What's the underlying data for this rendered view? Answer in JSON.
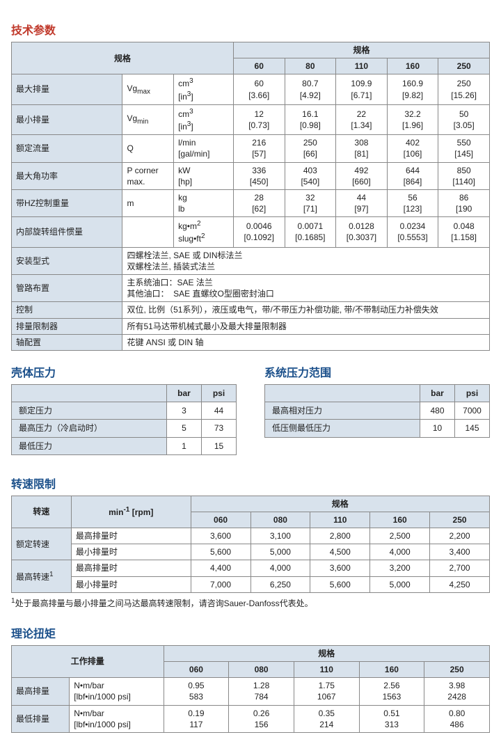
{
  "titles": {
    "tech": "技术参数",
    "shell": "壳体压力",
    "sysrange": "系统压力范围",
    "speed": "转速限制",
    "torque": "理论扭矩"
  },
  "tech": {
    "spec_header": "规格",
    "sizes": [
      "60",
      "80",
      "110",
      "160",
      "250"
    ],
    "rows": [
      {
        "label": "最大排量",
        "sym": "Vg<sub>max</sub>",
        "unit": "cm<sup>3</sup>",
        "unit2": "[in<sup>3</sup>]",
        "v": [
          "60",
          "80.7",
          "109.9",
          "160.9",
          "250"
        ],
        "v2": [
          "[3.66]",
          "[4.92]",
          "[6.71]",
          "[9.82]",
          "[15.26]"
        ]
      },
      {
        "label": "最小排量",
        "sym": "Vg<sub>min</sub>",
        "unit": "cm<sup>3</sup>",
        "unit2": "[in<sup>3</sup>]",
        "v": [
          "12",
          "16.1",
          "22",
          "32.2",
          "50"
        ],
        "v2": [
          "[0.73]",
          "[0.98]",
          "[1.34]",
          "[1.96]",
          "[3.05]"
        ]
      },
      {
        "label": "额定流量",
        "sym": "Q",
        "unit": "l/min",
        "unit2": "[gal/min]",
        "v": [
          "216",
          "250",
          "308",
          "402",
          "550"
        ],
        "v2": [
          "[57]",
          "[66]",
          "[81]",
          "[106]",
          "[145]"
        ]
      },
      {
        "label": "最大角功率",
        "sym": "P corner<br>max.",
        "unit": "kW",
        "unit2": "[hp]",
        "v": [
          "336",
          "403",
          "492",
          "644",
          "850"
        ],
        "v2": [
          "[450]",
          "[540]",
          "[660]",
          "[864]",
          "[1140]"
        ]
      },
      {
        "label": "带HZ控制重量",
        "sym": "m",
        "unit": "kg",
        "unit2": "lb",
        "v": [
          "28",
          "32",
          "44",
          "56",
          "86"
        ],
        "v2": [
          "[62]",
          "[71]",
          "[97]",
          "[123]",
          "[190"
        ]
      },
      {
        "label": "内部旋转组件惯量",
        "sym": "",
        "unit": "kg•m<sup>2</sup>",
        "unit2": "slug•ft<sup>2</sup>",
        "v": [
          "0.0046",
          "0.0071",
          "0.0128",
          "0.0234",
          "0.048"
        ],
        "v2": [
          "[0.1092]",
          "[0.1685]",
          "[0.3037]",
          "[0.5553]",
          "[1.158]"
        ]
      }
    ],
    "textrows": [
      {
        "label": "安装型式",
        "text": "四螺栓法兰, SAE 或 DIN标法兰<br>双螺栓法兰, 插装式法兰"
      },
      {
        "label": "管路布置",
        "text": "主系统油口：SAE 法兰<br>其他油口：&nbsp;&nbsp;SAE 直螺纹O型圈密封油口"
      },
      {
        "label": "控制",
        "text": "双位, 比例（51系列），液压或电气，带/不带压力补偿功能, 带/不带制动压力补偿失效"
      },
      {
        "label": "排量限制器",
        "text": "所有51马达带机械式最小及最大排量限制器"
      },
      {
        "label": "轴配置",
        "text": "花键 ANSI 或 DIN 轴"
      }
    ]
  },
  "shell": {
    "headers": [
      "",
      "bar",
      "psi"
    ],
    "rows": [
      [
        "额定压力",
        "3",
        "44"
      ],
      [
        "最高压力（冷启动时）",
        "5",
        "73"
      ],
      [
        "最低压力",
        "1",
        "15"
      ]
    ]
  },
  "sysrange": {
    "headers": [
      "",
      "bar",
      "psi"
    ],
    "rows": [
      [
        "最高相对压力",
        "480",
        "7000"
      ],
      [
        "低压侧最低压力",
        "10",
        "145"
      ]
    ]
  },
  "speed": {
    "col1": "转速",
    "col2": "min<sup>-1</sup> [rpm]",
    "spec": "规格",
    "sizes": [
      "060",
      "080",
      "110",
      "160",
      "250"
    ],
    "groups": [
      {
        "label": "额定转速",
        "rows": [
          {
            "cond": "最高排量时",
            "v": [
              "3,600",
              "3,100",
              "2,800",
              "2,500",
              "2,200"
            ]
          },
          {
            "cond": "最小排量时",
            "v": [
              "5,600",
              "5,000",
              "4,500",
              "4,000",
              "3,400"
            ]
          }
        ]
      },
      {
        "label": "最高转速<sup>1</sup>",
        "rows": [
          {
            "cond": "最高排量时",
            "v": [
              "4,400",
              "4,000",
              "3,600",
              "3,200",
              "2,700"
            ]
          },
          {
            "cond": "最小排量时",
            "v": [
              "7,000",
              "6,250",
              "5,600",
              "5,000",
              "4,250"
            ]
          }
        ]
      }
    ],
    "note": "<sup>1</sup>处于最高排量与最小排量之间马达最高转速限制，请咨询Sauer-Danfoss代表处。"
  },
  "torque": {
    "col1": "工作排量",
    "spec": "规格",
    "sizes": [
      "060",
      "080",
      "110",
      "160",
      "250"
    ],
    "rows": [
      {
        "label": "最高排量",
        "unit": "N•m/bar<br>[lbf•in/1000 psi]",
        "v": [
          "0.95<br>583",
          "1.28<br>784",
          "1.75<br>1067",
          "2.56<br>1563",
          "3.98<br>2428"
        ]
      },
      {
        "label": "最低排量",
        "unit": "N•m/bar<br>[lbf•in/1000 psi]",
        "v": [
          "0.19<br>117",
          "0.26<br>156",
          "0.35<br>214",
          "0.51<br>313",
          "0.80<br>486"
        ]
      }
    ]
  }
}
